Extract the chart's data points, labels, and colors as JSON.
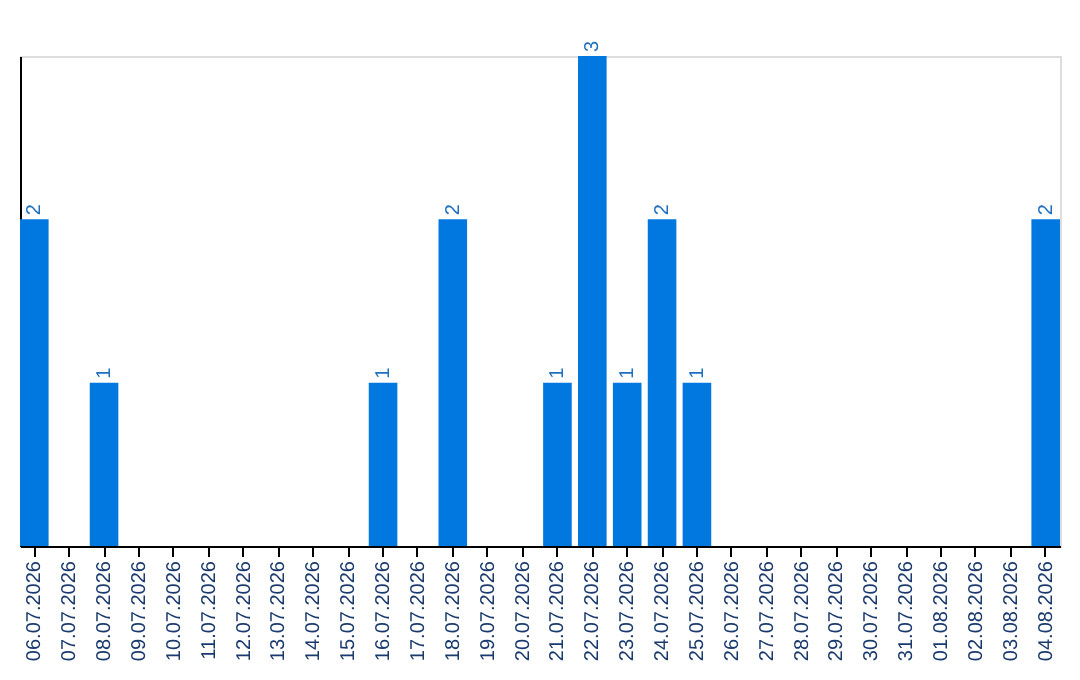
{
  "chart_data": {
    "type": "bar",
    "categories": [
      "06.07.2026",
      "07.07.2026",
      "08.07.2026",
      "09.07.2026",
      "10.07.2026",
      "11.07.2026",
      "12.07.2026",
      "13.07.2026",
      "14.07.2026",
      "15.07.2026",
      "16.07.2026",
      "17.07.2026",
      "18.07.2026",
      "19.07.2026",
      "20.07.2026",
      "21.07.2026",
      "22.07.2026",
      "23.07.2026",
      "24.07.2026",
      "25.07.2026",
      "26.07.2026",
      "27.07.2026",
      "28.07.2026",
      "29.07.2026",
      "30.07.2026",
      "31.07.2026",
      "01.08.2026",
      "02.08.2026",
      "03.08.2026",
      "04.08.2026"
    ],
    "values": [
      2,
      0,
      1,
      0,
      0,
      0,
      0,
      0,
      0,
      0,
      1,
      0,
      2,
      0,
      0,
      1,
      3,
      1,
      2,
      1,
      0,
      0,
      0,
      0,
      0,
      0,
      0,
      0,
      0,
      2
    ],
    "value_labels": [
      "2",
      null,
      "1",
      null,
      null,
      null,
      null,
      null,
      null,
      null,
      "1",
      null,
      "2",
      null,
      null,
      "1",
      "3",
      "1",
      "2",
      "1",
      null,
      null,
      null,
      null,
      null,
      null,
      null,
      null,
      null,
      "2"
    ],
    "color": "#0078e0",
    "tick_labels": "x"
  }
}
